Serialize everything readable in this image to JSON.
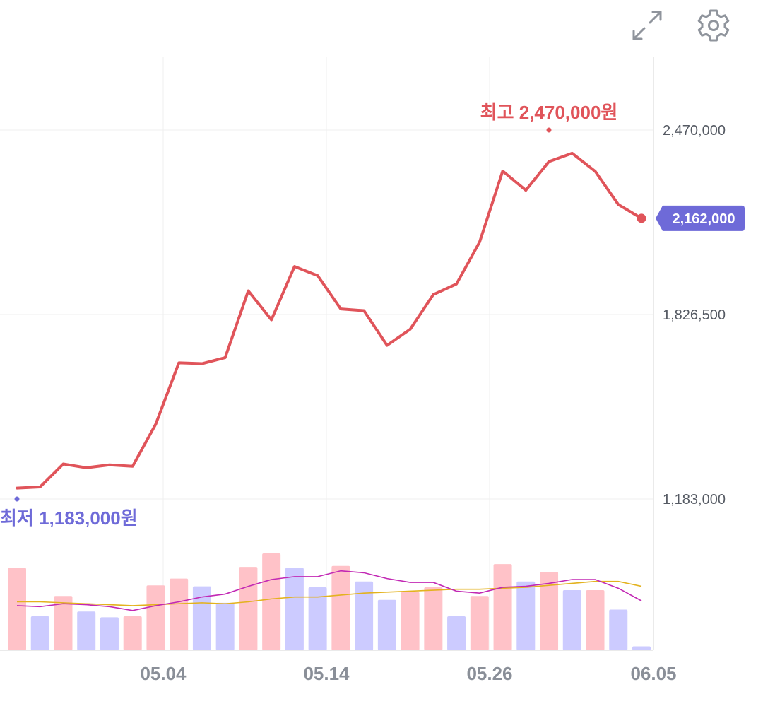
{
  "toolbar": {
    "expand_icon": "expand-arrows-icon",
    "settings_icon": "gear-icon"
  },
  "chart_data": {
    "type": "line",
    "x_ticks": [
      "05.04",
      "05.14",
      "05.26",
      "06.05"
    ],
    "y_ticks": [
      "2,470,000",
      "1,826,500",
      "1,183,000"
    ],
    "y_tick_values": [
      2470000,
      1826500,
      1183000
    ],
    "high_label": "최고 2,470,000원",
    "high_value": 2470000,
    "low_label": "최저 1,183,000원",
    "low_value": 1183000,
    "current_label": "2,162,000",
    "current_value": 2162000,
    "price": [
      1221000,
      1225000,
      1305000,
      1292000,
      1302000,
      1297000,
      1444000,
      1658000,
      1655000,
      1676000,
      1909000,
      1808000,
      1994000,
      1962000,
      1846000,
      1840000,
      1719000,
      1775000,
      1896000,
      1933000,
      2079000,
      2327000,
      2260000,
      2360000,
      2389000,
      2326000,
      2210000,
      2162000
    ],
    "volume": {
      "max": 1,
      "values": [
        0.85,
        0.35,
        0.56,
        0.4,
        0.34,
        0.35,
        0.67,
        0.74,
        0.66,
        0.49,
        0.86,
        1.0,
        0.85,
        0.65,
        0.87,
        0.71,
        0.52,
        0.6,
        0.65,
        0.35,
        0.56,
        0.89,
        0.71,
        0.81,
        0.62,
        0.62,
        0.42,
        0.04
      ],
      "up": [
        true,
        false,
        true,
        false,
        false,
        true,
        true,
        true,
        false,
        false,
        true,
        true,
        false,
        false,
        true,
        false,
        false,
        true,
        true,
        false,
        true,
        true,
        false,
        true,
        false,
        true,
        false,
        false
      ],
      "ma_short": [
        0.46,
        0.45,
        0.48,
        0.47,
        0.45,
        0.41,
        0.46,
        0.5,
        0.55,
        0.58,
        0.66,
        0.73,
        0.76,
        0.76,
        0.82,
        0.8,
        0.74,
        0.7,
        0.7,
        0.61,
        0.59,
        0.65,
        0.66,
        0.69,
        0.73,
        0.73,
        0.64,
        0.51
      ],
      "ma_long": [
        0.5,
        0.5,
        0.49,
        0.48,
        0.47,
        0.46,
        0.47,
        0.48,
        0.49,
        0.48,
        0.5,
        0.53,
        0.55,
        0.55,
        0.57,
        0.59,
        0.6,
        0.61,
        0.62,
        0.63,
        0.63,
        0.64,
        0.65,
        0.67,
        0.69,
        0.71,
        0.71,
        0.66
      ]
    },
    "colors": {
      "line": "#e0545a",
      "up_bar": "#ffc2c8",
      "down_bar": "#cccbff",
      "ma_short": "#c228b4",
      "ma_long": "#e3b21e",
      "low_marker": "#6e6ad8",
      "current_badge": "#6e6ad8",
      "grid": "#efefef"
    }
  }
}
